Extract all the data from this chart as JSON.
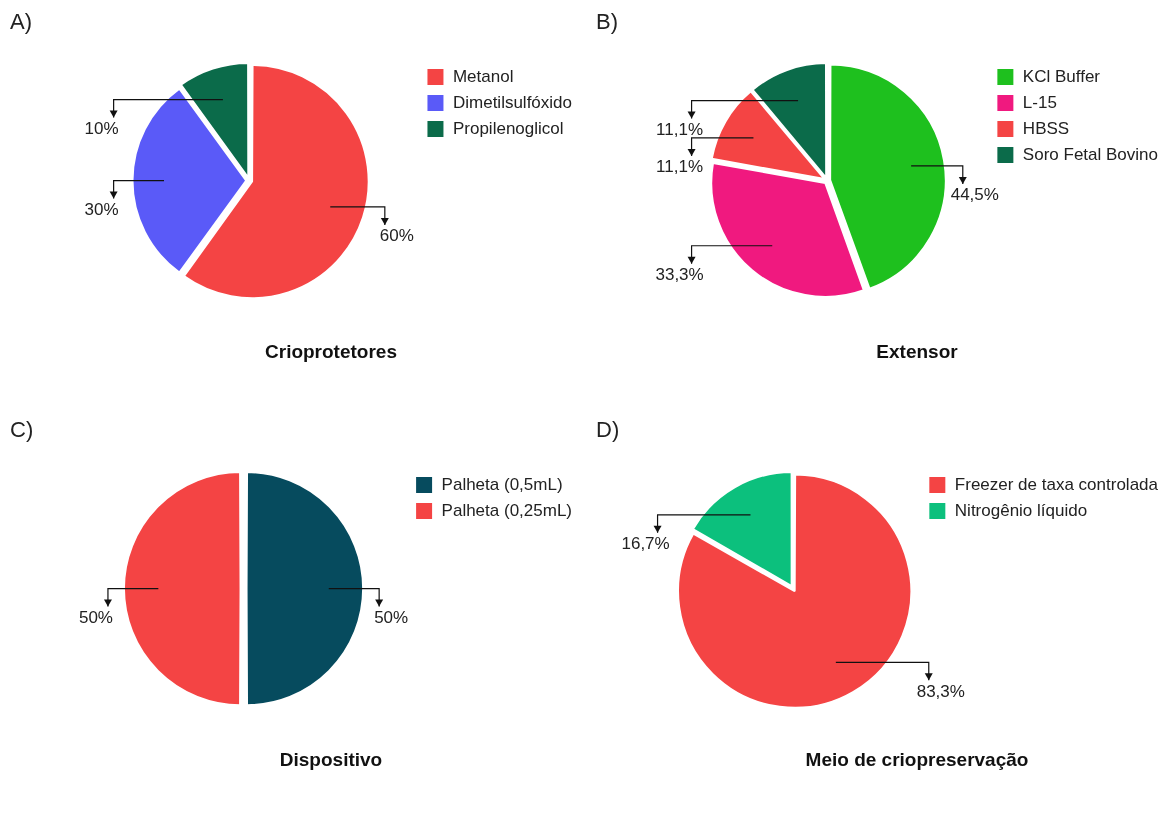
{
  "chart_data": [
    {
      "type": "pie",
      "title": "Crioprotetores",
      "annotations": [
        "A)"
      ],
      "legend": "right",
      "categories": [
        "Metanol",
        "Dimetilsulfóxido",
        "Propilenoglicol"
      ],
      "values": [
        60,
        30,
        10
      ],
      "colors": [
        "#f44444",
        "#5a5af8",
        "#0b6b4a"
      ],
      "value_labels": [
        "60%",
        "30%",
        "10%"
      ]
    },
    {
      "type": "pie",
      "title": "Extensor",
      "annotations": [
        "B)"
      ],
      "legend": "right",
      "categories": [
        "KCl Buffer",
        "L-15",
        "HBSS",
        "Soro Fetal Bovino"
      ],
      "values": [
        44.5,
        33.3,
        11.1,
        11.1
      ],
      "colors": [
        "#1ec01e",
        "#f0197f",
        "#f44444",
        "#0b6b4a"
      ],
      "value_labels": [
        "44,5%",
        "33,3%",
        "11,1%",
        "11,1%"
      ]
    },
    {
      "type": "pie",
      "title": "Dispositivo",
      "annotations": [
        "C)"
      ],
      "legend": "right",
      "categories": [
        "Palheta (0,5mL)",
        "Palheta (0,25mL)"
      ],
      "values": [
        50,
        50
      ],
      "colors": [
        "#064b5e",
        "#f44444"
      ],
      "value_labels": [
        "50%",
        "50%"
      ]
    },
    {
      "type": "pie",
      "title": "Meio de criopreservação",
      "annotations": [
        "D)"
      ],
      "legend": "right",
      "categories": [
        "Freezer de taxa controlada",
        "Nitrogênio líquido"
      ],
      "values": [
        83.3,
        16.7
      ],
      "colors": [
        "#f44444",
        "#0cc07d"
      ],
      "value_labels": [
        "83,3%",
        "16,7%"
      ]
    }
  ]
}
